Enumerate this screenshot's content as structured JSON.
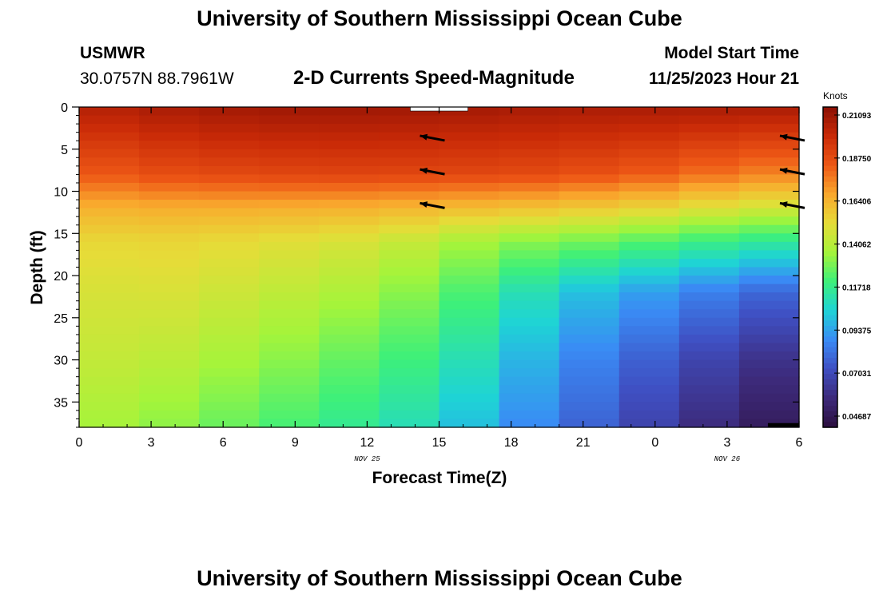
{
  "header": {
    "title": "University of Southern Mississippi Ocean Cube",
    "station_id": "USMWR",
    "coordinates": "30.0757N  88.7961W",
    "subtitle": "2-D Currents Speed-Magnitude",
    "model_start_label": "Model Start Time",
    "model_start_value": "11/25/2023 Hour 21"
  },
  "footer": {
    "title": "University of Southern Mississippi Ocean Cube"
  },
  "chart_data": {
    "type": "heatmap",
    "title": "2-D Currents Speed-Magnitude",
    "xlabel": "Forecast Time(Z)",
    "ylabel": "Depth (ft)",
    "x_ticks": [
      "0",
      "3",
      "6",
      "9",
      "12",
      "15",
      "18",
      "21",
      "0",
      "3",
      "6"
    ],
    "x_range_hours": [
      0,
      30
    ],
    "date_labels": [
      {
        "text": "NOV 25",
        "hour": 12
      },
      {
        "text": "NOV 26",
        "hour": 27
      }
    ],
    "y_ticks": [
      "0",
      "5",
      "10",
      "15",
      "20",
      "25",
      "30",
      "35"
    ],
    "ylim": [
      0,
      38
    ],
    "colorbar": {
      "units": "Knots",
      "tick_labels": [
        "0.21093",
        "0.18750",
        "0.16406",
        "0.14062",
        "0.11718",
        "0.09375",
        "0.07031",
        "0.04687"
      ],
      "range": [
        0.035,
        0.215
      ],
      "colormap": [
        "#2b0f3f",
        "#3d2a7a",
        "#3f4fc2",
        "#3a8bf5",
        "#1ed3d6",
        "#3df07a",
        "#a5f43a",
        "#e6dc38",
        "#f9a82d",
        "#ee5816",
        "#c92a07",
        "#8b1004"
      ]
    },
    "time_columns_hours": [
      0,
      2.5,
      5,
      7.5,
      10,
      12.5,
      15,
      17.5,
      20,
      22.5,
      25,
      27.5,
      30
    ],
    "depth_levels_ft": [
      0,
      8,
      12,
      16,
      22,
      30,
      38
    ],
    "speed_knots": [
      [
        0.203,
        0.181,
        0.162,
        0.15,
        0.144,
        0.14,
        0.134
      ],
      [
        0.206,
        0.185,
        0.164,
        0.152,
        0.147,
        0.141,
        0.133
      ],
      [
        0.208,
        0.187,
        0.164,
        0.151,
        0.145,
        0.136,
        0.126
      ],
      [
        0.21,
        0.188,
        0.164,
        0.149,
        0.141,
        0.132,
        0.121
      ],
      [
        0.21,
        0.189,
        0.163,
        0.147,
        0.138,
        0.126,
        0.115
      ],
      [
        0.21,
        0.189,
        0.163,
        0.144,
        0.133,
        0.12,
        0.11
      ],
      [
        0.209,
        0.188,
        0.16,
        0.138,
        0.125,
        0.113,
        0.102
      ],
      [
        0.208,
        0.188,
        0.159,
        0.13,
        0.113,
        0.1,
        0.09
      ],
      [
        0.207,
        0.186,
        0.157,
        0.127,
        0.1,
        0.087,
        0.078
      ],
      [
        0.207,
        0.184,
        0.154,
        0.123,
        0.092,
        0.077,
        0.068
      ],
      [
        0.207,
        0.18,
        0.15,
        0.117,
        0.085,
        0.068,
        0.057
      ],
      [
        0.207,
        0.175,
        0.145,
        0.113,
        0.077,
        0.058,
        0.047
      ],
      [
        0.207,
        0.172,
        0.143,
        0.11,
        0.072,
        0.052,
        0.04
      ]
    ],
    "vector_arrows": [
      {
        "hour": 15,
        "depth_ft": 3.5,
        "direction": "west-northwest"
      },
      {
        "hour": 15,
        "depth_ft": 7.5,
        "direction": "west-northwest"
      },
      {
        "hour": 15,
        "depth_ft": 11.5,
        "direction": "west-northwest"
      },
      {
        "hour": 30,
        "depth_ft": 3.5,
        "direction": "west-northwest"
      },
      {
        "hour": 30,
        "depth_ft": 7.5,
        "direction": "west-northwest"
      },
      {
        "hour": 30,
        "depth_ft": 11.5,
        "direction": "west-northwest"
      }
    ],
    "grid": false
  }
}
